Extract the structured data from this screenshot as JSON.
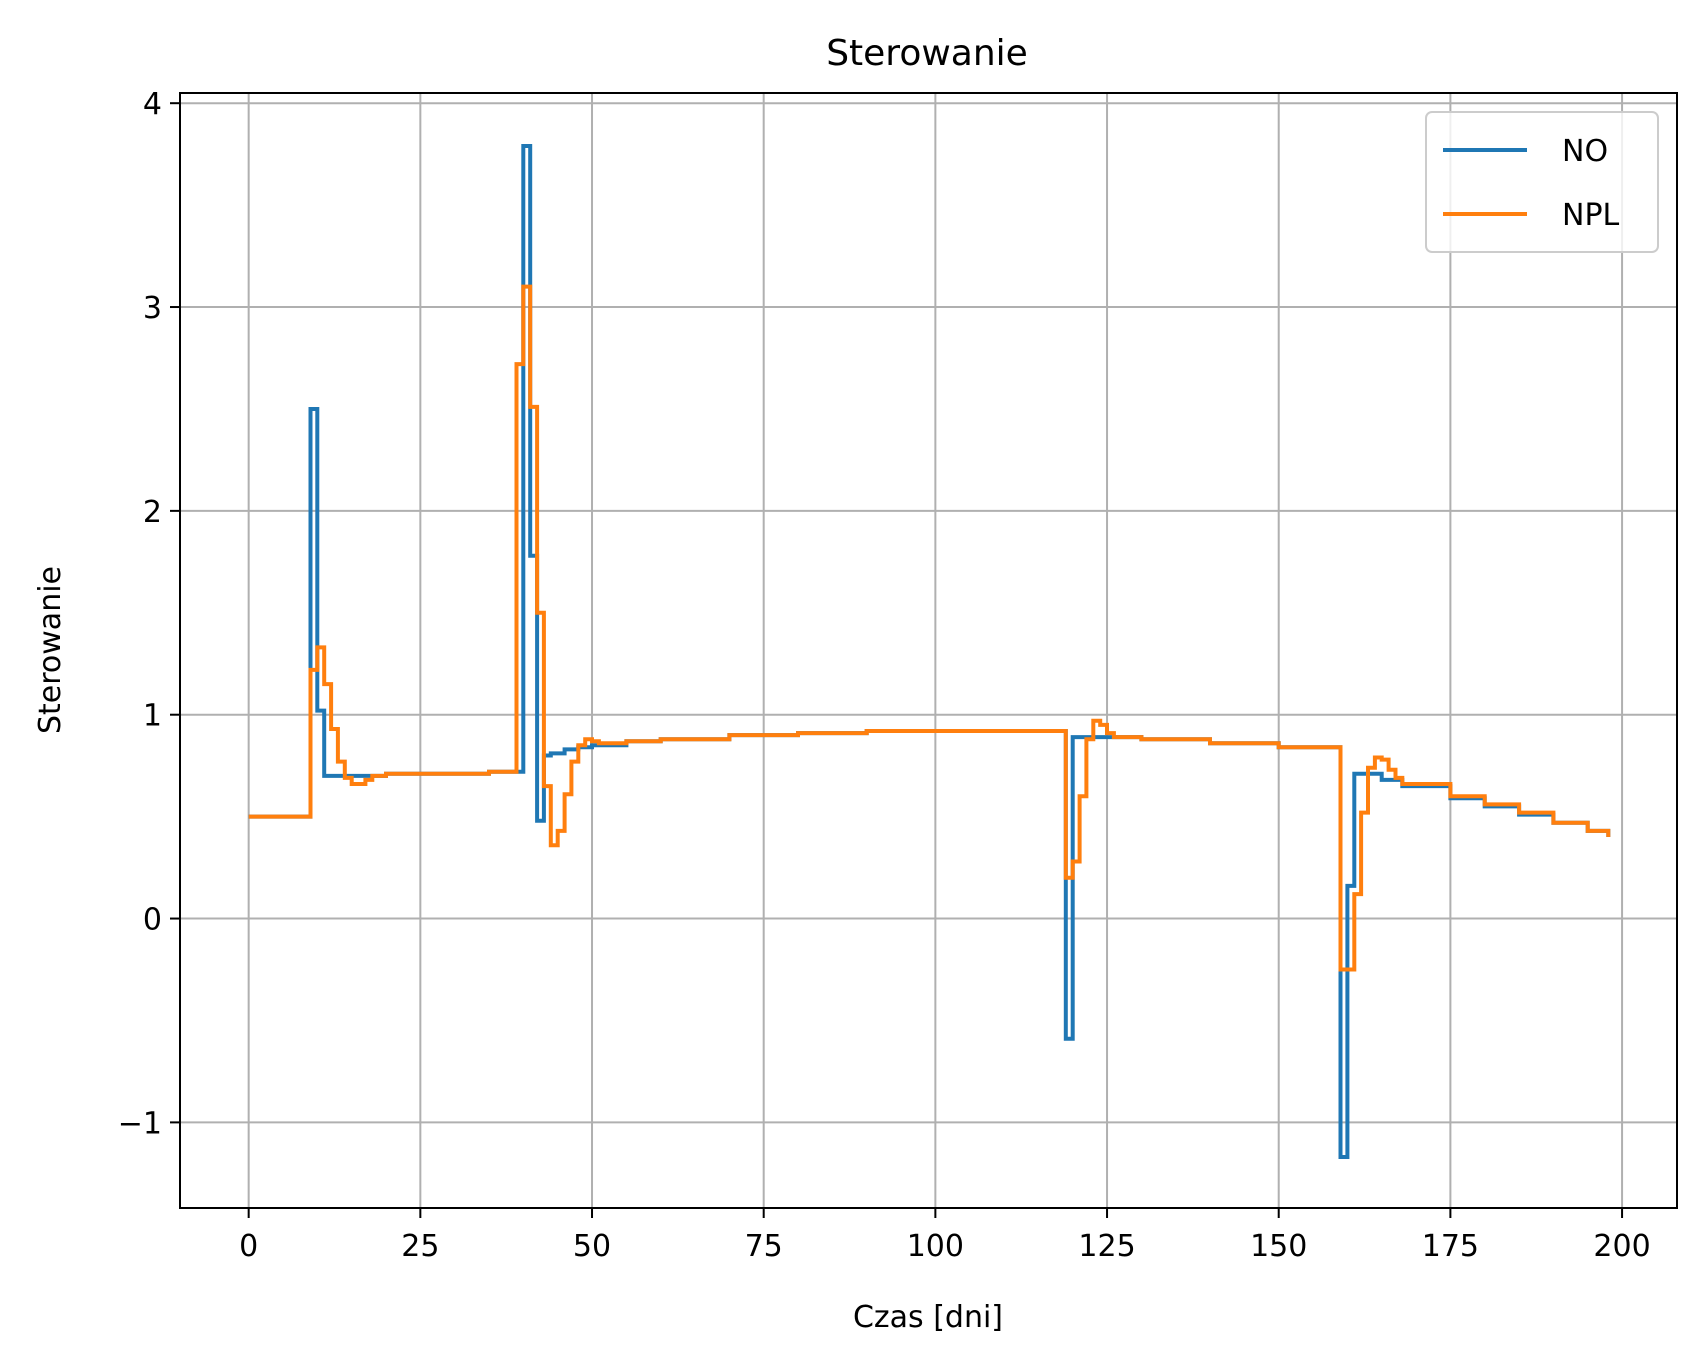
{
  "chart_data": {
    "type": "line",
    "title": "Sterowanie",
    "xlabel": "Czas [dni]",
    "ylabel": "Sterowanie",
    "xlim": [
      -10,
      208
    ],
    "ylim": [
      -1.42,
      4.05
    ],
    "xticks": [
      0,
      25,
      50,
      75,
      100,
      125,
      150,
      175,
      200
    ],
    "xtick_labels": [
      "0",
      "25",
      "50",
      "75",
      "100",
      "125",
      "150",
      "175",
      "200"
    ],
    "yticks": [
      -1,
      0,
      1,
      2,
      3,
      4
    ],
    "ytick_labels": [
      "−1",
      "0",
      "1",
      "2",
      "3",
      "4"
    ],
    "grid": true,
    "legend_position": "top-right",
    "colors": {
      "NO": "#1f77b4",
      "NPL": "#ff7f0e",
      "grid": "#b0b0b0"
    },
    "series": [
      {
        "name": "NO",
        "drawstyle": "steps-post",
        "x": [
          0,
          9,
          10,
          11,
          12,
          15,
          20,
          25,
          30,
          35,
          40,
          41,
          42,
          43,
          44,
          46,
          48,
          50,
          55,
          60,
          70,
          80,
          90,
          100,
          110,
          119,
          120,
          121,
          125,
          130,
          140,
          150,
          159,
          160,
          161,
          162,
          165,
          168,
          175,
          180,
          185,
          190,
          195,
          198
        ],
        "y": [
          0.5,
          2.5,
          1.02,
          0.7,
          0.7,
          0.7,
          0.71,
          0.71,
          0.71,
          0.72,
          3.79,
          1.78,
          0.48,
          0.8,
          0.81,
          0.83,
          0.84,
          0.85,
          0.87,
          0.88,
          0.9,
          0.91,
          0.92,
          0.92,
          0.92,
          -0.59,
          0.89,
          0.89,
          0.89,
          0.88,
          0.86,
          0.84,
          -1.17,
          0.16,
          0.71,
          0.71,
          0.68,
          0.65,
          0.59,
          0.55,
          0.51,
          0.47,
          0.43,
          0.4
        ]
      },
      {
        "name": "NPL",
        "drawstyle": "steps-post",
        "x": [
          0,
          9,
          10,
          11,
          12,
          13,
          14,
          15,
          17,
          18,
          20,
          25,
          30,
          35,
          38,
          39,
          40,
          41,
          42,
          43,
          44,
          45,
          46,
          47,
          48,
          49,
          50,
          51,
          55,
          60,
          70,
          80,
          90,
          100,
          110,
          119,
          120,
          121,
          122,
          123,
          124,
          125,
          126,
          130,
          140,
          150,
          159,
          160,
          161,
          162,
          163,
          164,
          165,
          166,
          167,
          168,
          175,
          180,
          185,
          190,
          195,
          198
        ],
        "y": [
          0.5,
          1.22,
          1.33,
          1.15,
          0.93,
          0.77,
          0.69,
          0.66,
          0.68,
          0.7,
          0.71,
          0.71,
          0.71,
          0.72,
          0.72,
          2.72,
          3.1,
          2.51,
          1.5,
          0.65,
          0.36,
          0.43,
          0.61,
          0.77,
          0.85,
          0.88,
          0.87,
          0.86,
          0.87,
          0.88,
          0.9,
          0.91,
          0.92,
          0.92,
          0.92,
          0.2,
          0.28,
          0.6,
          0.88,
          0.97,
          0.95,
          0.91,
          0.89,
          0.88,
          0.86,
          0.84,
          -0.25,
          -0.25,
          0.12,
          0.52,
          0.74,
          0.79,
          0.78,
          0.73,
          0.69,
          0.66,
          0.6,
          0.56,
          0.52,
          0.47,
          0.43,
          0.4
        ]
      }
    ]
  }
}
